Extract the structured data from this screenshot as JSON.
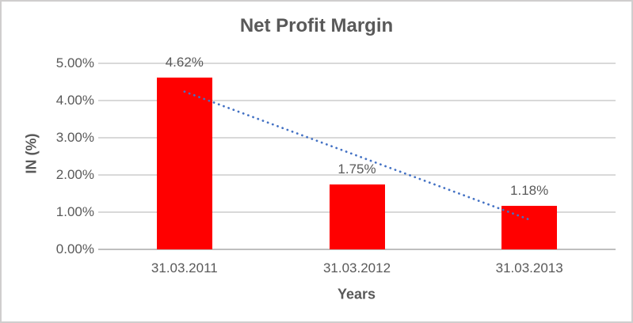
{
  "chart_data": {
    "type": "bar",
    "title": "Net Profit Margin",
    "xlabel": "Years",
    "ylabel": "IN (%)",
    "categories": [
      "31.03.2011",
      "31.03.2012",
      "31.03.2013"
    ],
    "values": [
      4.62,
      1.75,
      1.18
    ],
    "value_labels": [
      "4.62%",
      "1.75%",
      "1.18%"
    ],
    "ylim": [
      0,
      5
    ],
    "yticks": [
      {
        "value": 5,
        "label": "5.00%"
      },
      {
        "value": 4,
        "label": "4.00%"
      },
      {
        "value": 3,
        "label": "3.00%"
      },
      {
        "value": 2,
        "label": "2.00%"
      },
      {
        "value": 1,
        "label": "1.00%"
      },
      {
        "value": 0,
        "label": "0.00%"
      }
    ],
    "grid": "horizontal",
    "legend": "none",
    "bar_color": "#ff0000",
    "trendline": {
      "type": "linear",
      "style": "dotted",
      "color": "#4472c4",
      "start_value": 4.24,
      "end_value": 0.8
    },
    "colors": {
      "text": "#595959",
      "gridline": "#d9d9d9",
      "axis_line": "#bfbfbf",
      "frame_border": "#d0cece",
      "background": "#ffffff"
    }
  }
}
